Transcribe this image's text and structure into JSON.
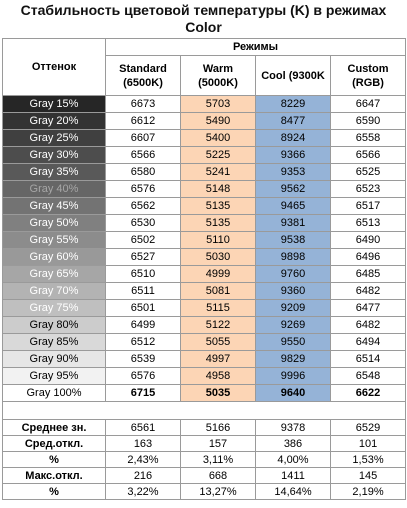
{
  "title_line1": "Стабильность цветовой температуры (K) в режимах",
  "title_line2": "Color",
  "headers": {
    "hue": "Оттенок",
    "modes": "Режимы",
    "standard_1": "Standard",
    "standard_2": "(6500K)",
    "warm_1": "Warm",
    "warm_2": "(5000K)",
    "cool_1": "Cool (9300K",
    "custom_1": "Custom",
    "custom_2": "(RGB)"
  },
  "rows": [
    {
      "label": "Gray 15%",
      "bg": "#262626",
      "fg": "#ffffff",
      "standard": "6673",
      "warm": "5703",
      "cool": "8229",
      "custom": "6647"
    },
    {
      "label": "Gray 20%",
      "bg": "#333333",
      "fg": "#ffffff",
      "standard": "6612",
      "warm": "5490",
      "cool": "8477",
      "custom": "6590"
    },
    {
      "label": "Gray 25%",
      "bg": "#404040",
      "fg": "#ffffff",
      "standard": "6607",
      "warm": "5400",
      "cool": "8924",
      "custom": "6558"
    },
    {
      "label": "Gray 30%",
      "bg": "#4d4d4d",
      "fg": "#ffffff",
      "standard": "6566",
      "warm": "5225",
      "cool": "9366",
      "custom": "6566"
    },
    {
      "label": "Gray 35%",
      "bg": "#595959",
      "fg": "#ffffff",
      "standard": "6580",
      "warm": "5241",
      "cool": "9353",
      "custom": "6525"
    },
    {
      "label": "Gray 40%",
      "bg": "#666666",
      "fg": "#a6a6a6",
      "standard": "6576",
      "warm": "5148",
      "cool": "9562",
      "custom": "6523"
    },
    {
      "label": "Gray 45%",
      "bg": "#737373",
      "fg": "#ffffff",
      "standard": "6562",
      "warm": "5135",
      "cool": "9465",
      "custom": "6517"
    },
    {
      "label": "Gray 50%",
      "bg": "#808080",
      "fg": "#ffffff",
      "standard": "6530",
      "warm": "5135",
      "cool": "9381",
      "custom": "6513"
    },
    {
      "label": "Gray 55%",
      "bg": "#8c8c8c",
      "fg": "#ffffff",
      "standard": "6502",
      "warm": "5110",
      "cool": "9538",
      "custom": "6490"
    },
    {
      "label": "Gray 60%",
      "bg": "#999999",
      "fg": "#ffffff",
      "standard": "6527",
      "warm": "5030",
      "cool": "9898",
      "custom": "6496"
    },
    {
      "label": "Gray 65%",
      "bg": "#a6a6a6",
      "fg": "#ffffff",
      "standard": "6510",
      "warm": "4999",
      "cool": "9760",
      "custom": "6485"
    },
    {
      "label": "Gray 70%",
      "bg": "#b3b3b3",
      "fg": "#ffffff",
      "standard": "6511",
      "warm": "5081",
      "cool": "9360",
      "custom": "6482"
    },
    {
      "label": "Gray 75%",
      "bg": "#bfbfbf",
      "fg": "#ffffff",
      "standard": "6501",
      "warm": "5115",
      "cool": "9209",
      "custom": "6477"
    },
    {
      "label": "Gray 80%",
      "bg": "#cccccc",
      "fg": "#000000",
      "standard": "6499",
      "warm": "5122",
      "cool": "9269",
      "custom": "6482"
    },
    {
      "label": "Gray 85%",
      "bg": "#d9d9d9",
      "fg": "#000000",
      "standard": "6512",
      "warm": "5055",
      "cool": "9550",
      "custom": "6494"
    },
    {
      "label": "Gray 90%",
      "bg": "#e6e6e6",
      "fg": "#000000",
      "standard": "6539",
      "warm": "4997",
      "cool": "9829",
      "custom": "6514"
    },
    {
      "label": "Gray 95%",
      "bg": "#f2f2f2",
      "fg": "#000000",
      "standard": "6576",
      "warm": "4958",
      "cool": "9996",
      "custom": "6548"
    },
    {
      "label": "Gray 100%",
      "bg": "#ffffff",
      "fg": "#000000",
      "standard": "6715",
      "warm": "5035",
      "cool": "9640",
      "custom": "6622",
      "bold": true
    }
  ],
  "stats": [
    {
      "label": "Среднее зн.",
      "standard": "6561",
      "warm": "5166",
      "cool": "9378",
      "custom": "6529"
    },
    {
      "label": "Сред.откл.",
      "standard": "163",
      "warm": "157",
      "cool": "386",
      "custom": "101"
    },
    {
      "label": "%",
      "standard": "2,43%",
      "warm": "3,11%",
      "cool": "4,00%",
      "custom": "1,53%"
    },
    {
      "label": "Макс.откл.",
      "standard": "216",
      "warm": "668",
      "cool": "1411",
      "custom": "145"
    },
    {
      "label": "%",
      "standard": "3,22%",
      "warm": "13,27%",
      "cool": "14,64%",
      "custom": "2,19%"
    }
  ],
  "colors": {
    "warm": "#fcd5b5",
    "cool": "#95b3d7",
    "border": "#9a9a9a"
  }
}
